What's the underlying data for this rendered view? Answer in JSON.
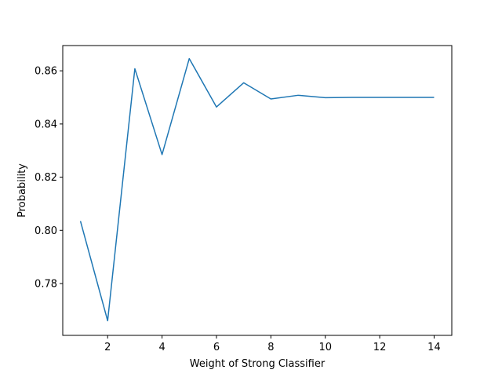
{
  "chart_data": {
    "type": "line",
    "title": "",
    "xlabel": "Weight of Strong Classifier",
    "ylabel": "Probability",
    "xlim": [
      0.35,
      14.65
    ],
    "ylim": [
      0.7605,
      0.8695
    ],
    "xticks": [
      2,
      4,
      6,
      8,
      10,
      12,
      14
    ],
    "xtick_labels": [
      "2",
      "4",
      "6",
      "8",
      "10",
      "12",
      "14"
    ],
    "yticks": [
      0.78,
      0.8,
      0.82,
      0.84,
      0.86
    ],
    "ytick_labels": [
      "0.78",
      "0.80",
      "0.82",
      "0.84",
      "0.86"
    ],
    "grid": false,
    "legend": "none",
    "series": [
      {
        "color": "#1f77b4",
        "x": [
          1,
          2,
          3,
          4,
          5,
          6,
          7,
          8,
          9,
          10,
          11,
          12,
          13,
          14
        ],
        "y": [
          0.8035,
          0.766,
          0.8608,
          0.8285,
          0.8646,
          0.8464,
          0.8555,
          0.8494,
          0.8508,
          0.8499,
          0.85,
          0.85,
          0.85,
          0.85
        ]
      }
    ]
  }
}
